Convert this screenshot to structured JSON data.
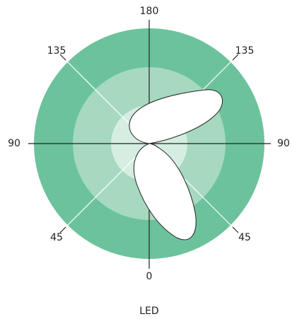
{
  "labels": {
    "top": "180",
    "upper_left": "135",
    "upper_right": "135",
    "left": "90",
    "right": "90",
    "lower_left": "45",
    "lower_right": "45",
    "bottom": "0"
  },
  "caption": "LED"
}
